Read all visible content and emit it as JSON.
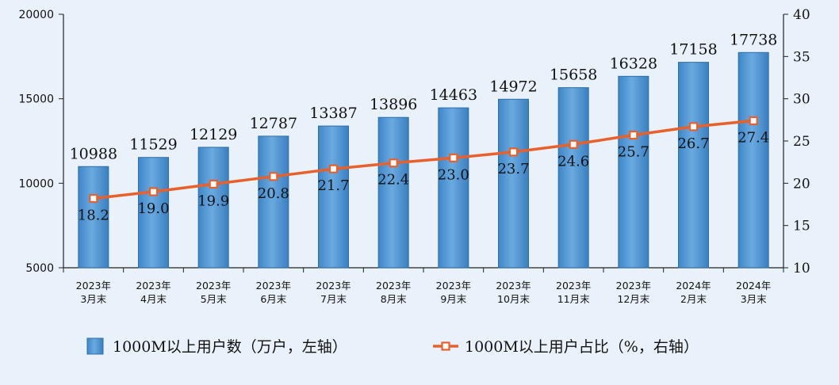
{
  "chart_data": {
    "type": "bar",
    "categories": [
      [
        "2023年",
        "3月末"
      ],
      [
        "2023年",
        "4月末"
      ],
      [
        "2023年",
        "5月末"
      ],
      [
        "2023年",
        "6月末"
      ],
      [
        "2023年",
        "7月末"
      ],
      [
        "2023年",
        "8月末"
      ],
      [
        "2023年",
        "9月末"
      ],
      [
        "2023年",
        "10月末"
      ],
      [
        "2023年",
        "11月末"
      ],
      [
        "2023年",
        "12月末"
      ],
      [
        "2024年",
        "2月末"
      ],
      [
        "2024年",
        "3月末"
      ]
    ],
    "series": [
      {
        "name": "1000M以上用户数（万户，左轴）",
        "type": "bar",
        "axis": "left",
        "values": [
          10988,
          11529,
          12129,
          12787,
          13387,
          13896,
          14463,
          14972,
          15658,
          16328,
          17158,
          17738
        ],
        "color": "#5b9bd5"
      },
      {
        "name": "1000M以上用户占比（%，右轴）",
        "type": "line",
        "axis": "right",
        "values": [
          18.2,
          19.0,
          19.9,
          20.8,
          21.7,
          22.4,
          23.0,
          23.7,
          24.6,
          25.7,
          26.7,
          27.4
        ],
        "value_labels": [
          "18.2",
          "19.0",
          "19.9",
          "20.8",
          "21.7",
          "22.4",
          "23.0",
          "23.7",
          "24.6",
          "25.7",
          "26.7",
          "27.4"
        ],
        "color": "#e8602c"
      }
    ],
    "y_left": {
      "min": 5000,
      "max": 20000,
      "ticks": [
        5000,
        10000,
        15000,
        20000
      ]
    },
    "y_right": {
      "min": 10,
      "max": 40,
      "ticks": [
        10,
        15,
        20,
        25,
        30,
        35,
        40
      ]
    },
    "legend_position": "bottom",
    "grid": false
  }
}
